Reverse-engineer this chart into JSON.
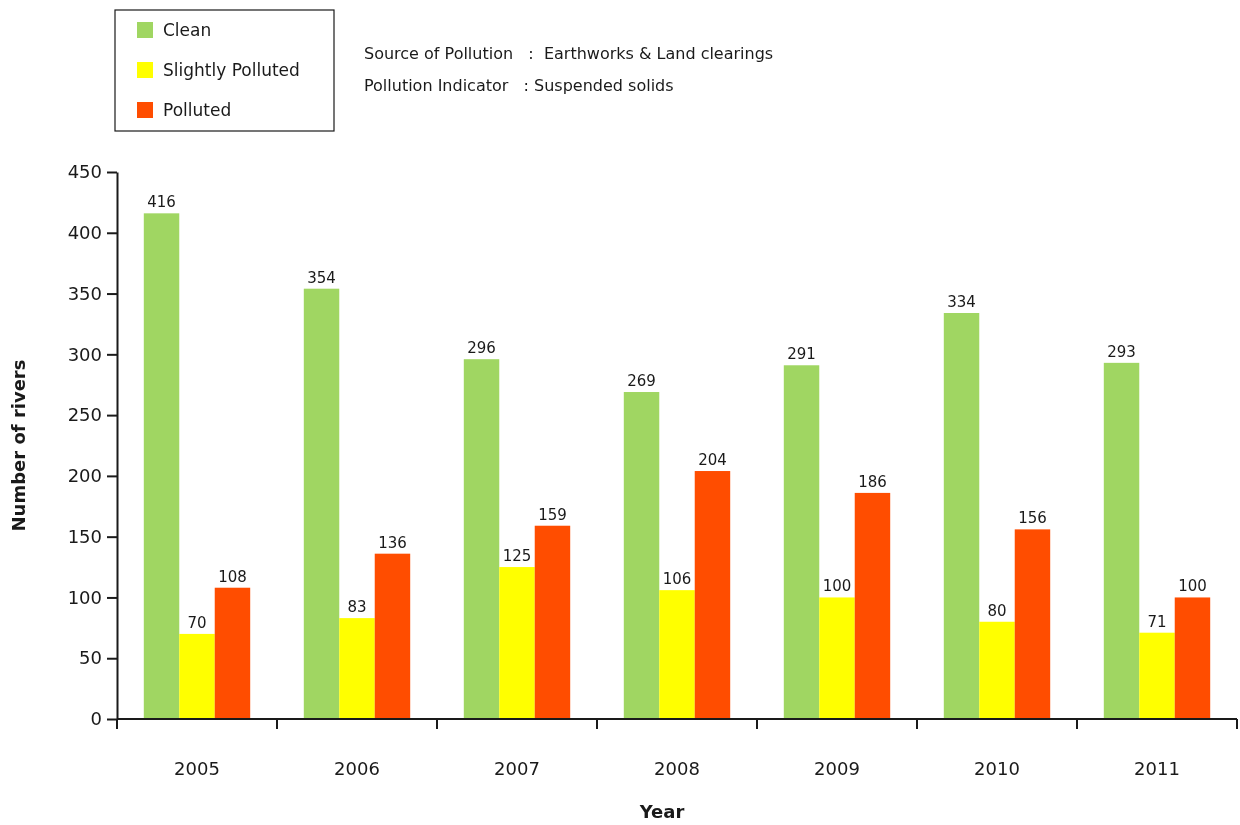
{
  "chart_data": {
    "type": "bar",
    "xlabel": "Year",
    "ylabel": "Number of rivers",
    "categories": [
      "2005",
      "2006",
      "2007",
      "2008",
      "2009",
      "2010",
      "2011"
    ],
    "series": [
      {
        "name": "Clean",
        "color": "#a0d662",
        "values": [
          416,
          354,
          296,
          269,
          291,
          334,
          293
        ]
      },
      {
        "name": "Slightly Polluted",
        "color": "#ffff00",
        "values": [
          70,
          83,
          125,
          106,
          100,
          80,
          71
        ]
      },
      {
        "name": "Polluted",
        "color": "#ff4d00",
        "values": [
          108,
          136,
          159,
          204,
          186,
          156,
          100
        ]
      }
    ],
    "ylim": [
      0,
      450
    ],
    "yticks": [
      0,
      50,
      100,
      150,
      200,
      250,
      300,
      350,
      400,
      450
    ],
    "data_labels": true,
    "legend": "top left",
    "annotations": [
      "Source of Pollution   :  Earthworks & Land clearings",
      "Pollution Indicator   : Suspended solids"
    ]
  }
}
